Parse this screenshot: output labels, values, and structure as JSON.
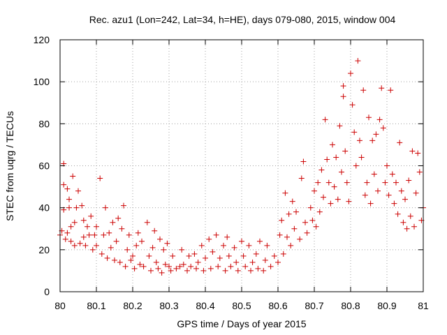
{
  "chart_data": {
    "type": "scatter",
    "title": "Rec. azu1 (Lon=242, Lat=34, h=HE), days 079-080, 2015, window 004",
    "xlabel": "GPS time / Days of year 2015",
    "ylabel": "STEC from uqrg / TECUs",
    "xlim": [
      80,
      81
    ],
    "ylim": [
      0,
      120
    ],
    "x_ticks": [
      80,
      80.1,
      80.2,
      80.3,
      80.4,
      80.5,
      80.6,
      80.7,
      80.8,
      80.9,
      81
    ],
    "x_tick_labels": [
      "80",
      "80.1",
      "80.2",
      "80.3",
      "80.4",
      "80.5",
      "80.6",
      "80.7",
      "80.8",
      "80.9",
      "81"
    ],
    "y_ticks": [
      0,
      20,
      40,
      60,
      80,
      100,
      120
    ],
    "y_tick_labels": [
      "0",
      "20",
      "40",
      "60",
      "80",
      "100",
      "120"
    ],
    "grid": true,
    "marker": "plus",
    "color": "#cc0000",
    "points": [
      [
        80.0,
        27
      ],
      [
        80.005,
        29
      ],
      [
        80.01,
        61
      ],
      [
        80.01,
        51
      ],
      [
        80.01,
        39
      ],
      [
        80.015,
        25
      ],
      [
        80.02,
        49
      ],
      [
        80.02,
        28
      ],
      [
        80.025,
        44
      ],
      [
        80.025,
        40
      ],
      [
        80.03,
        31
      ],
      [
        80.03,
        24
      ],
      [
        80.035,
        55
      ],
      [
        80.04,
        22
      ],
      [
        80.04,
        33
      ],
      [
        80.045,
        40
      ],
      [
        80.05,
        48
      ],
      [
        80.055,
        23
      ],
      [
        80.06,
        41
      ],
      [
        80.065,
        26
      ],
      [
        80.065,
        34
      ],
      [
        80.07,
        22
      ],
      [
        80.075,
        31
      ],
      [
        80.08,
        27
      ],
      [
        80.085,
        36
      ],
      [
        80.09,
        20
      ],
      [
        80.095,
        27
      ],
      [
        80.1,
        31
      ],
      [
        80.1,
        22
      ],
      [
        80.11,
        54
      ],
      [
        80.115,
        18
      ],
      [
        80.12,
        27
      ],
      [
        80.125,
        40
      ],
      [
        80.13,
        16
      ],
      [
        80.135,
        28
      ],
      [
        80.14,
        21
      ],
      [
        80.145,
        33
      ],
      [
        80.15,
        15
      ],
      [
        80.155,
        24
      ],
      [
        80.16,
        35
      ],
      [
        80.165,
        14
      ],
      [
        80.17,
        30
      ],
      [
        80.175,
        41
      ],
      [
        80.18,
        12
      ],
      [
        80.185,
        20
      ],
      [
        80.19,
        27
      ],
      [
        80.195,
        15
      ],
      [
        80.2,
        17
      ],
      [
        80.205,
        11
      ],
      [
        80.21,
        22
      ],
      [
        80.215,
        28
      ],
      [
        80.22,
        13
      ],
      [
        80.225,
        24
      ],
      [
        80.23,
        12
      ],
      [
        80.24,
        33
      ],
      [
        80.245,
        17
      ],
      [
        80.25,
        10
      ],
      [
        80.255,
        21
      ],
      [
        80.26,
        29
      ],
      [
        80.265,
        14
      ],
      [
        80.27,
        11
      ],
      [
        80.275,
        25
      ],
      [
        80.28,
        9
      ],
      [
        80.285,
        20
      ],
      [
        80.29,
        13
      ],
      [
        80.295,
        23
      ],
      [
        80.3,
        12
      ],
      [
        80.305,
        10
      ],
      [
        80.31,
        17
      ],
      [
        80.32,
        11
      ],
      [
        80.33,
        12
      ],
      [
        80.335,
        20
      ],
      [
        80.34,
        13
      ],
      [
        80.35,
        10
      ],
      [
        80.355,
        17
      ],
      [
        80.36,
        12
      ],
      [
        80.37,
        18
      ],
      [
        80.375,
        11
      ],
      [
        80.38,
        14
      ],
      [
        80.39,
        22
      ],
      [
        80.395,
        10
      ],
      [
        80.4,
        16
      ],
      [
        80.41,
        25
      ],
      [
        80.415,
        11
      ],
      [
        80.42,
        19
      ],
      [
        80.43,
        27
      ],
      [
        80.435,
        12
      ],
      [
        80.44,
        16
      ],
      [
        80.45,
        22
      ],
      [
        80.455,
        10
      ],
      [
        80.46,
        26
      ],
      [
        80.465,
        17
      ],
      [
        80.47,
        12
      ],
      [
        80.48,
        21
      ],
      [
        80.485,
        14
      ],
      [
        80.49,
        10
      ],
      [
        80.5,
        24
      ],
      [
        80.505,
        17
      ],
      [
        80.51,
        12
      ],
      [
        80.52,
        22
      ],
      [
        80.525,
        10
      ],
      [
        80.53,
        14
      ],
      [
        80.54,
        18
      ],
      [
        80.545,
        11
      ],
      [
        80.55,
        24
      ],
      [
        80.56,
        10
      ],
      [
        80.565,
        15
      ],
      [
        80.57,
        22
      ],
      [
        80.58,
        12
      ],
      [
        80.59,
        17
      ],
      [
        80.6,
        14
      ],
      [
        80.605,
        27
      ],
      [
        80.61,
        34
      ],
      [
        80.615,
        18
      ],
      [
        80.62,
        47
      ],
      [
        80.625,
        26
      ],
      [
        80.63,
        37
      ],
      [
        80.635,
        22
      ],
      [
        80.64,
        43
      ],
      [
        80.645,
        30
      ],
      [
        80.65,
        38
      ],
      [
        80.66,
        25
      ],
      [
        80.665,
        54
      ],
      [
        80.67,
        62
      ],
      [
        80.675,
        33
      ],
      [
        80.68,
        28
      ],
      [
        80.69,
        40
      ],
      [
        80.695,
        34
      ],
      [
        80.7,
        48
      ],
      [
        80.705,
        31
      ],
      [
        80.71,
        52
      ],
      [
        80.715,
        38
      ],
      [
        80.72,
        58
      ],
      [
        80.725,
        45
      ],
      [
        80.73,
        82
      ],
      [
        80.735,
        63
      ],
      [
        80.74,
        52
      ],
      [
        80.745,
        42
      ],
      [
        80.75,
        70
      ],
      [
        80.755,
        50
      ],
      [
        80.76,
        64
      ],
      [
        80.765,
        44
      ],
      [
        80.77,
        79
      ],
      [
        80.775,
        57
      ],
      [
        80.78,
        98
      ],
      [
        80.78,
        93
      ],
      [
        80.785,
        67
      ],
      [
        80.79,
        52
      ],
      [
        80.795,
        43
      ],
      [
        80.8,
        104
      ],
      [
        80.805,
        89
      ],
      [
        80.81,
        76
      ],
      [
        80.815,
        60
      ],
      [
        80.82,
        110
      ],
      [
        80.825,
        72
      ],
      [
        80.83,
        64
      ],
      [
        80.835,
        96
      ],
      [
        80.84,
        46
      ],
      [
        80.845,
        52
      ],
      [
        80.85,
        83
      ],
      [
        80.855,
        42
      ],
      [
        80.86,
        72
      ],
      [
        80.865,
        56
      ],
      [
        80.87,
        75
      ],
      [
        80.875,
        48
      ],
      [
        80.88,
        82
      ],
      [
        80.885,
        97
      ],
      [
        80.89,
        78
      ],
      [
        80.895,
        52
      ],
      [
        80.9,
        60
      ],
      [
        80.905,
        46
      ],
      [
        80.91,
        96
      ],
      [
        80.915,
        56
      ],
      [
        80.92,
        42
      ],
      [
        80.925,
        52
      ],
      [
        80.93,
        37
      ],
      [
        80.935,
        71
      ],
      [
        80.94,
        48
      ],
      [
        80.945,
        33
      ],
      [
        80.95,
        44
      ],
      [
        80.955,
        30
      ],
      [
        80.96,
        53
      ],
      [
        80.965,
        36
      ],
      [
        80.97,
        67
      ],
      [
        80.975,
        31
      ],
      [
        80.98,
        47
      ],
      [
        80.985,
        66
      ],
      [
        80.99,
        57
      ],
      [
        80.995,
        34
      ],
      [
        81.0,
        40
      ]
    ]
  }
}
